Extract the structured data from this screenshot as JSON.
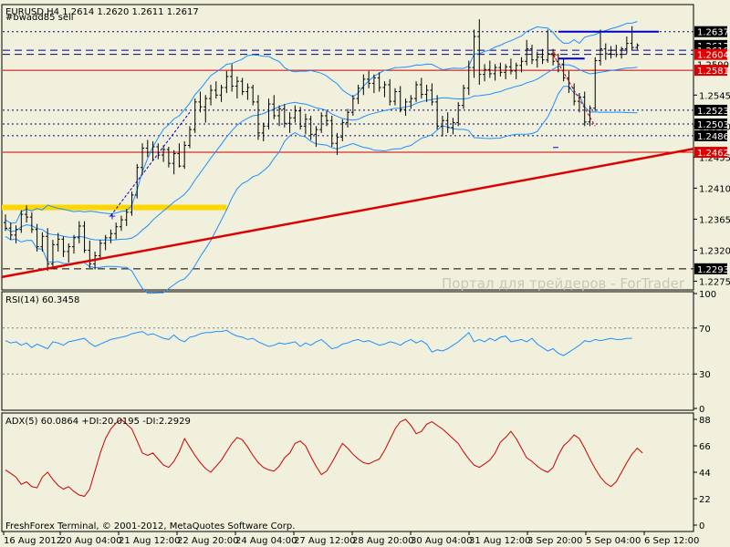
{
  "header": {
    "symbol_line": "EURUSD,H4  1.2614 1.2620 1.2611 1.2617",
    "subtitle": "#bwadd85 sell"
  },
  "watermark": "Портал для трейдеров - ForTrader",
  "footer": "FreshForex Terminal, © 2001-2012, MetaQuotes Software Corp.",
  "colors": {
    "background": "#F0F0DC",
    "axis": "#000000",
    "bollinger": "#1E90FF",
    "trendline": "#DD0000",
    "zone": "#FFD700",
    "rsi": "#1E90FF",
    "adx": "#CC0000",
    "price_tag_bg": "#000000",
    "red_tag_bg": "#DD0000"
  },
  "chart_data": [
    {
      "type": "candlestick",
      "title": "EURUSD,H4",
      "ohlc_header": {
        "open": 1.2614,
        "high": 1.262,
        "low": 1.2611,
        "close": 1.2617
      },
      "ylim": [
        1.2265,
        1.2675
      ],
      "y_ticks": [
        1.2545,
        1.25,
        1.2455,
        1.241,
        1.2365,
        1.232,
        1.2275
      ],
      "price_tags": [
        {
          "label": "1.2637",
          "value": 1.2637,
          "style": "black"
        },
        {
          "label": "1.2617",
          "value": 1.2617,
          "style": "black"
        },
        {
          "label": "1.2610",
          "value": 1.261,
          "style": "black"
        },
        {
          "label": "1.2604",
          "value": 1.2604,
          "style": "red"
        },
        {
          "label": "1.2590",
          "value": 1.259,
          "style": "plain"
        },
        {
          "label": "1.2581",
          "value": 1.2581,
          "style": "red"
        },
        {
          "label": "1.2523",
          "value": 1.2523,
          "style": "black"
        },
        {
          "label": "1.2503",
          "value": 1.2503,
          "style": "black"
        },
        {
          "label": "1.2486",
          "value": 1.2486,
          "style": "black"
        },
        {
          "label": "1.2462",
          "value": 1.2462,
          "style": "red"
        },
        {
          "label": "1.2293",
          "value": 1.2293,
          "style": "black"
        }
      ],
      "horizontal_lines": [
        {
          "value": 1.2637,
          "style": "dotted",
          "color": "#000080"
        },
        {
          "value": 1.261,
          "style": "dashed",
          "color": "#000080"
        },
        {
          "value": 1.2604,
          "style": "dashed",
          "color": "#000080"
        },
        {
          "value": 1.2581,
          "style": "solid",
          "color": "#CC0000"
        },
        {
          "value": 1.2523,
          "style": "dotted",
          "color": "#000080"
        },
        {
          "value": 1.2503,
          "style": "dotted",
          "color": "#000080"
        },
        {
          "value": 1.2486,
          "style": "dotted",
          "color": "#000080"
        },
        {
          "value": 1.2462,
          "style": "solid",
          "color": "#CC0000"
        },
        {
          "value": 1.2293,
          "style": "dashed",
          "color": "#000000"
        }
      ],
      "trendline": {
        "from": {
          "bar": 0,
          "value": 1.2281
        },
        "to": {
          "bar": 145,
          "value": 1.2467
        }
      },
      "zone": {
        "value": 1.2382,
        "from_bar": 0,
        "to_bar": 42
      },
      "candles": [
        [
          1.236,
          1.2372,
          1.2348,
          1.2352
        ],
        [
          1.2352,
          1.236,
          1.2335,
          1.2342
        ],
        [
          1.2342,
          1.2356,
          1.233,
          1.235
        ],
        [
          1.235,
          1.2378,
          1.2345,
          1.2372
        ],
        [
          1.2372,
          1.2385,
          1.236,
          1.2368
        ],
        [
          1.2368,
          1.2375,
          1.2345,
          1.235
        ],
        [
          1.235,
          1.2358,
          1.2318,
          1.2325
        ],
        [
          1.2325,
          1.2346,
          1.2318,
          1.234
        ],
        [
          1.234,
          1.2352,
          1.229,
          1.23
        ],
        [
          1.23,
          1.2335,
          1.2295,
          1.2328
        ],
        [
          1.2328,
          1.2345,
          1.2318,
          1.2336
        ],
        [
          1.2336,
          1.234,
          1.231,
          1.2318
        ],
        [
          1.2318,
          1.233,
          1.2302,
          1.2325
        ],
        [
          1.2325,
          1.2342,
          1.2315,
          1.2338
        ],
        [
          1.2338,
          1.2362,
          1.233,
          1.2355
        ],
        [
          1.2355,
          1.2362,
          1.2316,
          1.232
        ],
        [
          1.232,
          1.2334,
          1.2294,
          1.23
        ],
        [
          1.23,
          1.2318,
          1.2292,
          1.2312
        ],
        [
          1.2312,
          1.2335,
          1.2306,
          1.233
        ],
        [
          1.233,
          1.2342,
          1.232,
          1.2338
        ],
        [
          1.2338,
          1.235,
          1.233,
          1.2344
        ],
        [
          1.2344,
          1.236,
          1.2336,
          1.2354
        ],
        [
          1.2354,
          1.237,
          1.2348,
          1.2364
        ],
        [
          1.2364,
          1.238,
          1.2355,
          1.2375
        ],
        [
          1.2375,
          1.2405,
          1.237,
          1.24
        ],
        [
          1.24,
          1.2445,
          1.2395,
          1.244
        ],
        [
          1.244,
          1.2475,
          1.243,
          1.2468
        ],
        [
          1.2468,
          1.248,
          1.2455,
          1.2462
        ],
        [
          1.2462,
          1.2478,
          1.245,
          1.247
        ],
        [
          1.247,
          1.2475,
          1.2452,
          1.2458
        ],
        [
          1.2458,
          1.2472,
          1.2448,
          1.2466
        ],
        [
          1.2466,
          1.247,
          1.244,
          1.2446
        ],
        [
          1.2446,
          1.2465,
          1.243,
          1.246
        ],
        [
          1.246,
          1.2475,
          1.244,
          1.2442
        ],
        [
          1.2442,
          1.2478,
          1.2438,
          1.2472
        ],
        [
          1.2472,
          1.25,
          1.2468,
          1.2495
        ],
        [
          1.2495,
          1.254,
          1.249,
          1.2535
        ],
        [
          1.2535,
          1.255,
          1.252,
          1.2528
        ],
        [
          1.2528,
          1.2545,
          1.2505,
          1.254
        ],
        [
          1.254,
          1.256,
          1.253,
          1.2552
        ],
        [
          1.2552,
          1.2565,
          1.254,
          1.2545
        ],
        [
          1.2545,
          1.256,
          1.2535,
          1.2556
        ],
        [
          1.2556,
          1.258,
          1.2548,
          1.2572
        ],
        [
          1.2572,
          1.259,
          1.255,
          1.2558
        ],
        [
          1.2558,
          1.2572,
          1.254,
          1.2565
        ],
        [
          1.2565,
          1.257,
          1.2545,
          1.255
        ],
        [
          1.255,
          1.2562,
          1.2538,
          1.2556
        ],
        [
          1.2556,
          1.256,
          1.253,
          1.2535
        ],
        [
          1.2535,
          1.2545,
          1.248,
          1.249
        ],
        [
          1.249,
          1.2505,
          1.2478,
          1.25
        ],
        [
          1.25,
          1.254,
          1.2495,
          1.2532
        ],
        [
          1.2532,
          1.2545,
          1.251,
          1.2515
        ],
        [
          1.2515,
          1.253,
          1.25,
          1.2525
        ],
        [
          1.2525,
          1.2532,
          1.2498,
          1.2504
        ],
        [
          1.2504,
          1.252,
          1.249,
          1.2512
        ],
        [
          1.2512,
          1.253,
          1.2505,
          1.2522
        ],
        [
          1.2522,
          1.2528,
          1.2495,
          1.25
        ],
        [
          1.25,
          1.2518,
          1.2488,
          1.251
        ],
        [
          1.251,
          1.2515,
          1.248,
          1.2488
        ],
        [
          1.2488,
          1.25,
          1.247,
          1.2495
        ],
        [
          1.2495,
          1.252,
          1.249,
          1.2515
        ],
        [
          1.2515,
          1.2522,
          1.25,
          1.2508
        ],
        [
          1.2508,
          1.2515,
          1.247,
          1.2475
        ],
        [
          1.2475,
          1.249,
          1.2458,
          1.2484
        ],
        [
          1.2484,
          1.251,
          1.2478,
          1.2505
        ],
        [
          1.2505,
          1.2525,
          1.2498,
          1.252
        ],
        [
          1.252,
          1.2545,
          1.2515,
          1.254
        ],
        [
          1.254,
          1.256,
          1.2532,
          1.2555
        ],
        [
          1.2555,
          1.2575,
          1.2545,
          1.2568
        ],
        [
          1.2568,
          1.258,
          1.2555,
          1.2562
        ],
        [
          1.2562,
          1.2575,
          1.2548,
          1.257
        ],
        [
          1.257,
          1.2578,
          1.255,
          1.2556
        ],
        [
          1.2556,
          1.2565,
          1.2542,
          1.256
        ],
        [
          1.256,
          1.2568,
          1.253,
          1.2536
        ],
        [
          1.2536,
          1.2555,
          1.253,
          1.255
        ],
        [
          1.255,
          1.2558,
          1.252,
          1.2524
        ],
        [
          1.2524,
          1.254,
          1.2515,
          1.2535
        ],
        [
          1.2535,
          1.2545,
          1.2525,
          1.254
        ],
        [
          1.254,
          1.2565,
          1.2535,
          1.256
        ],
        [
          1.256,
          1.257,
          1.254,
          1.2546
        ],
        [
          1.2546,
          1.256,
          1.2535,
          1.2552
        ],
        [
          1.2552,
          1.2562,
          1.253,
          1.2535
        ],
        [
          1.2535,
          1.2545,
          1.2495,
          1.25
        ],
        [
          1.25,
          1.2515,
          1.2485,
          1.2508
        ],
        [
          1.2508,
          1.252,
          1.249,
          1.2498
        ],
        [
          1.2498,
          1.2512,
          1.2488,
          1.2505
        ],
        [
          1.2505,
          1.2535,
          1.25,
          1.253
        ],
        [
          1.253,
          1.256,
          1.2525,
          1.2555
        ],
        [
          1.2555,
          1.2595,
          1.2545,
          1.2585
        ],
        [
          1.2585,
          1.264,
          1.257,
          1.263
        ],
        [
          1.263,
          1.2655,
          1.256,
          1.2575
        ],
        [
          1.2575,
          1.259,
          1.2565,
          1.2582
        ],
        [
          1.2582,
          1.2595,
          1.257,
          1.2576
        ],
        [
          1.2576,
          1.259,
          1.2566,
          1.2585
        ],
        [
          1.2585,
          1.2592,
          1.2572,
          1.2578
        ],
        [
          1.2578,
          1.259,
          1.2568,
          1.2586
        ],
        [
          1.2586,
          1.2598,
          1.2575,
          1.258
        ],
        [
          1.258,
          1.2592,
          1.2568,
          1.2588
        ],
        [
          1.2588,
          1.26,
          1.2578,
          1.2594
        ],
        [
          1.2594,
          1.2625,
          1.2588,
          1.2612
        ],
        [
          1.2612,
          1.2618,
          1.259,
          1.2596
        ],
        [
          1.2596,
          1.2608,
          1.2585,
          1.26
        ],
        [
          1.26,
          1.2612,
          1.259,
          1.2596
        ],
        [
          1.2596,
          1.264,
          1.2592,
          1.2605
        ],
        [
          1.2605,
          1.2612,
          1.2588,
          1.2594
        ],
        [
          1.2594,
          1.2605,
          1.2578,
          1.259
        ],
        [
          1.259,
          1.2598,
          1.2565,
          1.257
        ],
        [
          1.257,
          1.258,
          1.2548,
          1.2555
        ],
        [
          1.2555,
          1.2562,
          1.253,
          1.2536
        ],
        [
          1.2536,
          1.2548,
          1.252,
          1.2542
        ],
        [
          1.2542,
          1.255,
          1.25,
          1.2506
        ],
        [
          1.2506,
          1.253,
          1.25,
          1.2526
        ],
        [
          1.2526,
          1.26,
          1.2522,
          1.2595
        ],
        [
          1.2595,
          1.264,
          1.2588,
          1.2612
        ],
        [
          1.2612,
          1.262,
          1.2596,
          1.2605
        ],
        [
          1.2605,
          1.2616,
          1.2598,
          1.261
        ],
        [
          1.261,
          1.2618,
          1.26,
          1.2604
        ],
        [
          1.2604,
          1.2615,
          1.2598,
          1.2612
        ],
        [
          1.2612,
          1.263,
          1.2605,
          1.262
        ],
        [
          1.262,
          1.2645,
          1.261,
          1.2614
        ],
        [
          1.2614,
          1.262,
          1.2611,
          1.2617
        ]
      ]
    },
    {
      "type": "line",
      "title": "RSI(14) 60.3458",
      "ylim": [
        0,
        100
      ],
      "y_ticks": [
        100,
        70,
        30,
        0
      ],
      "levels": [
        70,
        30
      ],
      "values": [
        59,
        57,
        58,
        55,
        57,
        53,
        56,
        54,
        52,
        58,
        57,
        55,
        58,
        59,
        60,
        61,
        57,
        54,
        56,
        58,
        60,
        61,
        62,
        63,
        65,
        66,
        67,
        64,
        65,
        63,
        61,
        60,
        64,
        60,
        58,
        62,
        63,
        65,
        66,
        66,
        67,
        67,
        68,
        65,
        63,
        62,
        60,
        61,
        58,
        56,
        54,
        55,
        57,
        56,
        57,
        58,
        54,
        57,
        55,
        58,
        60,
        56,
        52,
        53,
        56,
        57,
        59,
        60,
        58,
        59,
        57,
        55,
        56,
        58,
        57,
        55,
        58,
        60,
        57,
        59,
        56,
        49,
        51,
        50,
        52,
        55,
        58,
        62,
        66,
        58,
        60,
        58,
        61,
        59,
        62,
        63,
        58,
        59,
        60,
        58,
        61,
        56,
        53,
        50,
        52,
        48,
        46,
        49,
        52,
        55,
        59,
        58,
        60,
        59,
        60,
        61,
        60,
        60,
        61,
        61
      ]
    },
    {
      "type": "line",
      "title": "ADX(5) 60.0864 +DI:20.0195 -DI:2.2929",
      "ylim": [
        0,
        88
      ],
      "y_ticks": [
        88,
        66,
        44,
        22,
        0
      ],
      "values": [
        46,
        43,
        40,
        34,
        36,
        32,
        31,
        40,
        44,
        38,
        33,
        30,
        32,
        28,
        25,
        24,
        30,
        45,
        60,
        72,
        80,
        85,
        88,
        84,
        80,
        70,
        60,
        58,
        60,
        55,
        50,
        48,
        53,
        61,
        72,
        65,
        58,
        52,
        47,
        44,
        49,
        54,
        61,
        68,
        73,
        71,
        65,
        58,
        52,
        48,
        46,
        45,
        49,
        56,
        60,
        68,
        70,
        66,
        57,
        49,
        42,
        45,
        52,
        60,
        68,
        64,
        59,
        55,
        52,
        51,
        53,
        55,
        62,
        71,
        80,
        86,
        88,
        83,
        76,
        78,
        84,
        86,
        83,
        80,
        76,
        72,
        68,
        61,
        55,
        50,
        48,
        51,
        54,
        60,
        69,
        73,
        78,
        72,
        64,
        56,
        53,
        49,
        46,
        44,
        48,
        58,
        66,
        70,
        75,
        72,
        64,
        55,
        47,
        40,
        35,
        32,
        36,
        44,
        52,
        59,
        64,
        60
      ]
    }
  ],
  "x_axis": {
    "labels": [
      "16 Aug 2012",
      "20 Aug 04:00",
      "21 Aug 12:00",
      "22 Aug 20:00",
      "24 Aug 04:00",
      "27 Aug 12:00",
      "28 Aug 20:00",
      "30 Aug 04:00",
      "31 Aug 12:00",
      "3 Sep 20:00",
      "5 Sep 04:00",
      "6 Sep 12:00"
    ]
  }
}
